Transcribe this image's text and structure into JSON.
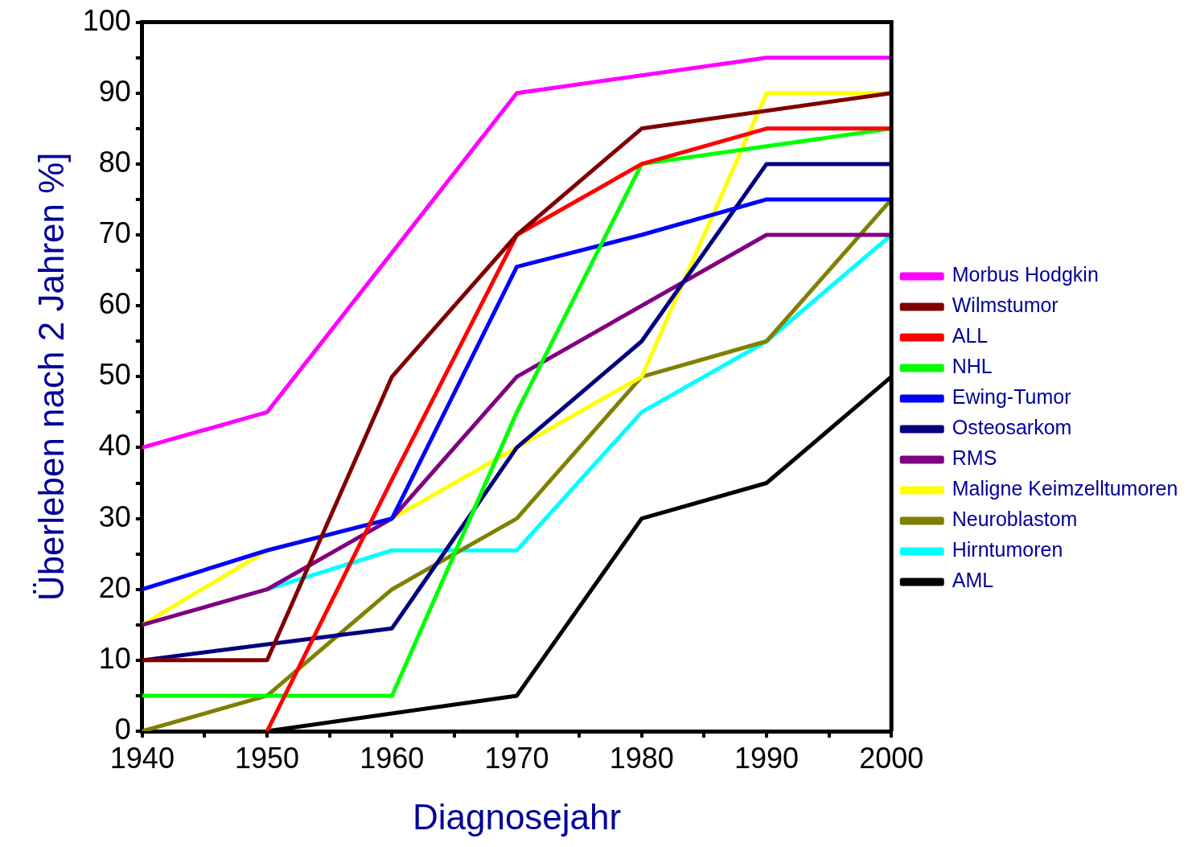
{
  "chart_data": {
    "type": "line",
    "xlabel": "Diagnosejahr",
    "ylabel": "Überleben nach 2 Jahren %]",
    "xlim": [
      1940,
      2000
    ],
    "ylim": [
      0,
      100
    ],
    "xticks": [
      1940,
      {
        "value": 1945,
        "label": null
      },
      1950,
      {
        "value": 1955,
        "label": null
      },
      1960,
      {
        "value": 1965,
        "label": null
      },
      1970,
      {
        "value": 1975,
        "label": null
      },
      1980,
      {
        "value": 1985,
        "label": null
      },
      1990,
      {
        "value": 1995,
        "label": null
      },
      2000
    ],
    "yticks": [
      0,
      {
        "value": 5,
        "label": null
      },
      10,
      {
        "value": 15,
        "label": null
      },
      20,
      {
        "value": 25,
        "label": null
      },
      30,
      {
        "value": 35,
        "label": null
      },
      40,
      {
        "value": 45,
        "label": null
      },
      50,
      {
        "value": 55,
        "label": null
      },
      60,
      {
        "value": 65,
        "label": null
      },
      70,
      {
        "value": 75,
        "label": null
      },
      80,
      {
        "value": 85,
        "label": null
      },
      90,
      {
        "value": 95,
        "label": null
      },
      100
    ],
    "grid": false,
    "legend": "right",
    "marker": "none",
    "line_style": "solid",
    "series": [
      {
        "name": "Morbus Hodgkin",
        "color": "#ff00ff",
        "x": [
          1940,
          1950,
          1970,
          1990,
          2000
        ],
        "values": [
          40,
          45,
          90,
          95,
          95
        ]
      },
      {
        "name": "Wilmstumor",
        "color": "#800000",
        "x": [
          1940,
          1950,
          1960,
          1970,
          1980,
          2000
        ],
        "values": [
          10,
          10,
          50,
          70,
          85,
          90
        ]
      },
      {
        "name": "ALL",
        "color": "#ff0000",
        "x": [
          1950,
          1960,
          1970,
          1980,
          1990,
          2000
        ],
        "values": [
          0,
          35.5,
          70,
          80,
          85,
          85
        ]
      },
      {
        "name": "NHL",
        "color": "#00ff00",
        "x": [
          1940,
          1950,
          1960,
          1970,
          1980,
          2000
        ],
        "values": [
          5,
          5,
          5,
          45,
          80,
          85
        ]
      },
      {
        "name": "Ewing-Tumor",
        "color": "#0000ff",
        "x": [
          1940,
          1950,
          1960,
          1970,
          1980,
          1990,
          2000
        ],
        "values": [
          20,
          25.5,
          30,
          65.5,
          70,
          75,
          75
        ]
      },
      {
        "name": "Osteosarkom",
        "color": "#000080",
        "x": [
          1940,
          1960,
          1970,
          1980,
          1990,
          2000
        ],
        "values": [
          10,
          14.5,
          40,
          55,
          80,
          80
        ]
      },
      {
        "name": "RMS",
        "color": "#800080",
        "x": [
          1940,
          1950,
          1960,
          1970,
          1990,
          2000
        ],
        "values": [
          15,
          20,
          30,
          50,
          70,
          70
        ]
      },
      {
        "name": "Maligne Keimzelltumoren",
        "color": "#ffff00",
        "x": [
          1940,
          1950,
          1960,
          1970,
          1980,
          1990,
          2000
        ],
        "values": [
          15,
          25.5,
          30,
          40,
          50,
          90,
          90
        ]
      },
      {
        "name": "Neuroblastom",
        "color": "#808000",
        "x": [
          1940,
          1950,
          1960,
          1970,
          1980,
          1990,
          2000
        ],
        "values": [
          0,
          5,
          20,
          30,
          50,
          55,
          75
        ]
      },
      {
        "name": "Hirntumoren",
        "color": "#00ffff",
        "x": [
          1950,
          1960,
          1970,
          1980,
          1990,
          2000
        ],
        "values": [
          20,
          25.5,
          25.5,
          45,
          55,
          70
        ]
      },
      {
        "name": "AML",
        "color": "#000000",
        "x": [
          1950,
          1970,
          1980,
          1990,
          2000
        ],
        "values": [
          0,
          5,
          30,
          35,
          50
        ]
      }
    ]
  }
}
